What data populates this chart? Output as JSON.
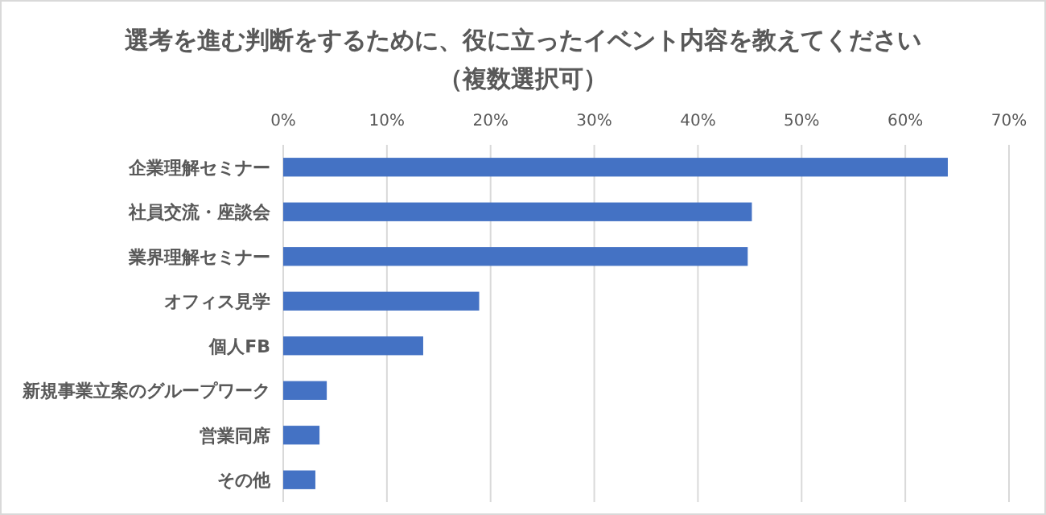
{
  "chart_data": {
    "type": "bar",
    "orientation": "horizontal",
    "title": "選考を進む判断をするために、役に立ったイベント内容を教えてください",
    "subtitle": "（複数選択可）",
    "categories": [
      "企業理解セミナー",
      "社員交流・座談会",
      "業界理解セミナー",
      "オフィス見学",
      "個人FB",
      "新規事業立案のグループワーク",
      "営業同席",
      "その他"
    ],
    "values": [
      64.1,
      45.2,
      44.8,
      18.9,
      13.5,
      4.2,
      3.5,
      3.1
    ],
    "color": "#4472c4",
    "xlim": [
      0,
      70
    ],
    "xticks": [
      {
        "value": 0,
        "label": "0%"
      },
      {
        "value": 10,
        "label": "10%"
      },
      {
        "value": 20,
        "label": "20%"
      },
      {
        "value": 30,
        "label": "30%"
      },
      {
        "value": 40,
        "label": "40%"
      },
      {
        "value": 50,
        "label": "50%"
      },
      {
        "value": 60,
        "label": "60%"
      },
      {
        "value": 70,
        "label": "70%"
      }
    ],
    "grid": "x"
  }
}
